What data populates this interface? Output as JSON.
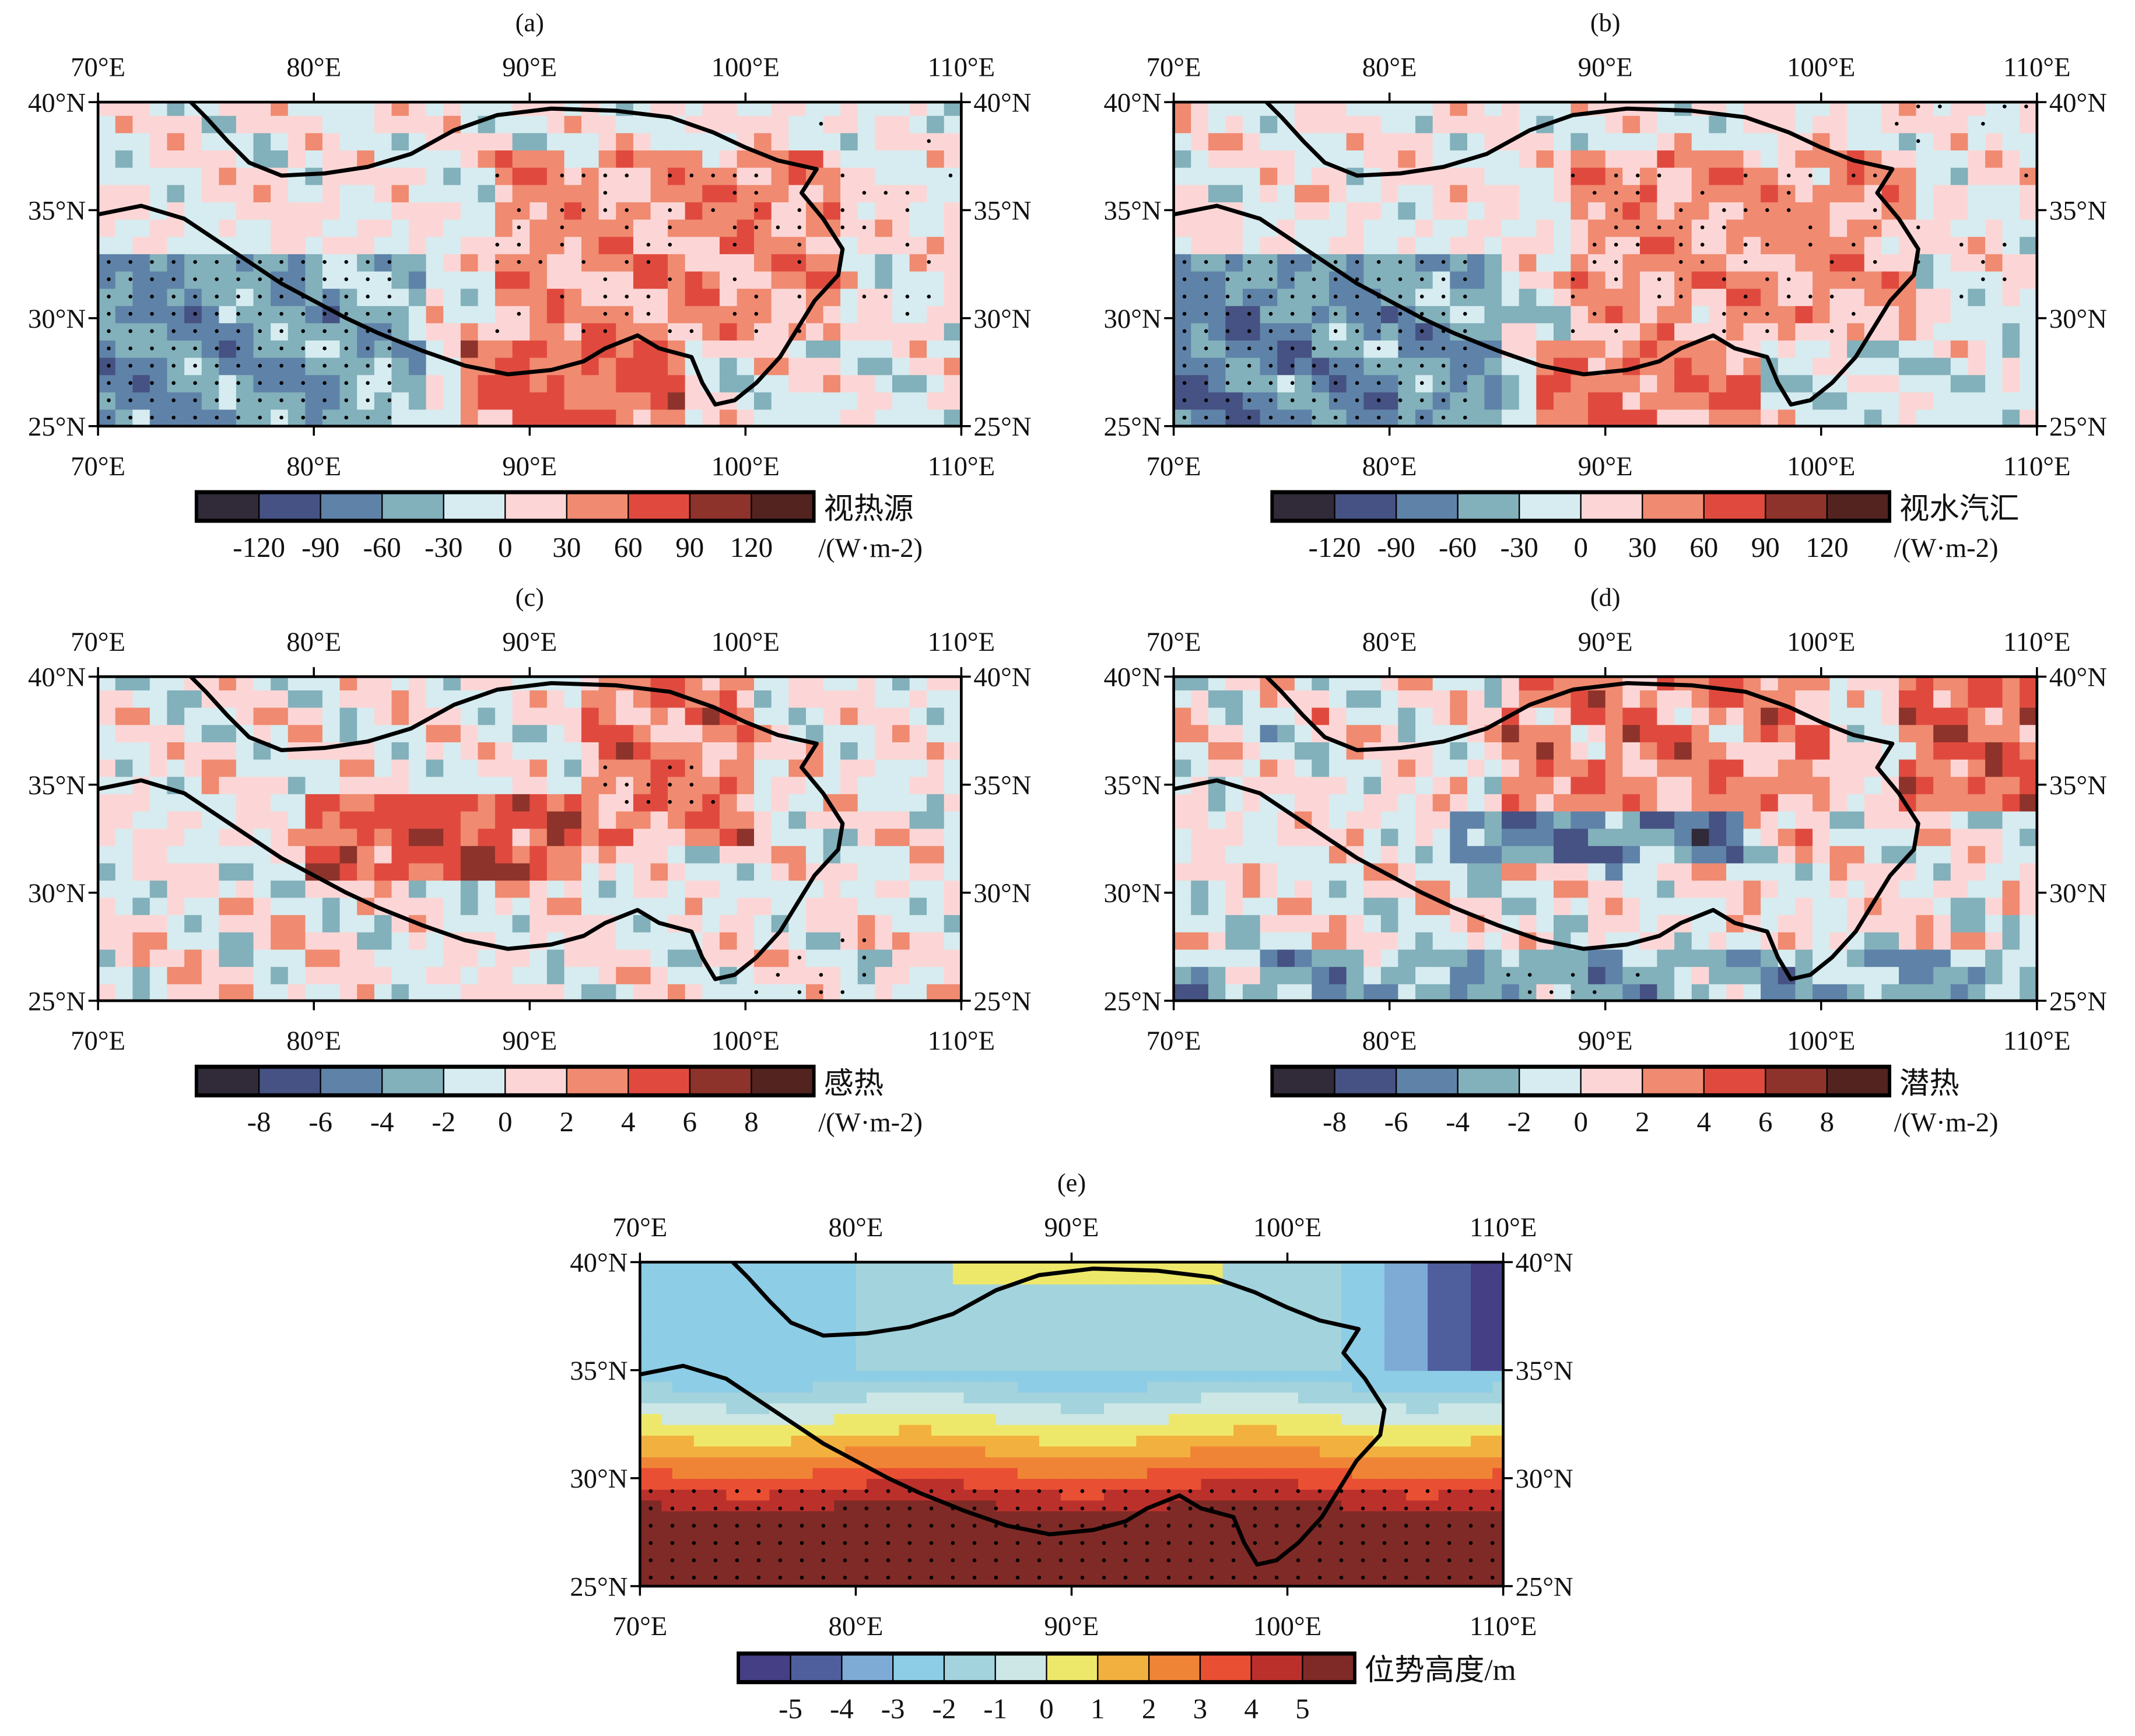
{
  "chart_data": [
    {
      "type": "heatmap",
      "panel": "(a)",
      "colorbar_title": "视热源",
      "units": "/(W·m-2)",
      "levels": [
        -120,
        -90,
        -60,
        -30,
        0,
        30,
        60,
        90,
        120
      ],
      "colors": [
        "#312a38",
        "#455283",
        "#5f82a8",
        "#82b0bb",
        "#d6ecf0",
        "#fcd6d6",
        "#f08a70",
        "#e04a3e",
        "#8e332b",
        "#52231f"
      ],
      "x_ticks": [
        "70°E",
        "80°E",
        "90°E",
        "100°E",
        "110°E"
      ],
      "y_ticks": [
        "25°N",
        "30°N",
        "35°N",
        "40°N"
      ],
      "xlim": [
        70,
        110
      ],
      "ylim": [
        25,
        40
      ],
      "stippling": true
    },
    {
      "type": "heatmap",
      "panel": "(b)",
      "colorbar_title": "视水汽汇",
      "units": "/(W·m-2)",
      "levels": [
        -120,
        -90,
        -60,
        -30,
        0,
        30,
        60,
        90,
        120
      ],
      "colors": [
        "#312a38",
        "#455283",
        "#5f82a8",
        "#82b0bb",
        "#d6ecf0",
        "#fcd6d6",
        "#f08a70",
        "#e04a3e",
        "#8e332b",
        "#52231f"
      ],
      "x_ticks": [
        "70°E",
        "80°E",
        "90°E",
        "100°E",
        "110°E"
      ],
      "y_ticks": [
        "25°N",
        "30°N",
        "35°N",
        "40°N"
      ],
      "xlim": [
        70,
        110
      ],
      "ylim": [
        25,
        40
      ],
      "stippling": true
    },
    {
      "type": "heatmap",
      "panel": "(c)",
      "colorbar_title": "感热",
      "units": "/(W·m-2)",
      "levels": [
        -8,
        -6,
        -4,
        -2,
        0,
        2,
        4,
        6,
        8
      ],
      "colors": [
        "#312a38",
        "#455283",
        "#5f82a8",
        "#82b0bb",
        "#d6ecf0",
        "#fcd6d6",
        "#f08a70",
        "#e04a3e",
        "#8e332b",
        "#52231f"
      ],
      "x_ticks": [
        "70°E",
        "80°E",
        "90°E",
        "100°E",
        "110°E"
      ],
      "y_ticks": [
        "25°N",
        "30°N",
        "35°N",
        "40°N"
      ],
      "xlim": [
        70,
        110
      ],
      "ylim": [
        25,
        40
      ],
      "stippling": true
    },
    {
      "type": "heatmap",
      "panel": "(d)",
      "colorbar_title": "潜热",
      "units": "/(W·m-2)",
      "levels": [
        -8,
        -6,
        -4,
        -2,
        0,
        2,
        4,
        6,
        8
      ],
      "colors": [
        "#312a38",
        "#455283",
        "#5f82a8",
        "#82b0bb",
        "#d6ecf0",
        "#fcd6d6",
        "#f08a70",
        "#e04a3e",
        "#8e332b",
        "#52231f"
      ],
      "x_ticks": [
        "70°E",
        "80°E",
        "90°E",
        "100°E",
        "110°E"
      ],
      "y_ticks": [
        "25°N",
        "30°N",
        "35°N",
        "40°N"
      ],
      "xlim": [
        70,
        110
      ],
      "ylim": [
        25,
        40
      ],
      "stippling": true
    },
    {
      "type": "heatmap",
      "panel": "(e)",
      "colorbar_title": "位势高度/m",
      "units": "",
      "levels": [
        -5,
        -4,
        -3,
        -2,
        -1,
        0,
        1,
        2,
        3,
        4,
        5
      ],
      "colors": [
        "#453f85",
        "#4f5f9e",
        "#7eabd6",
        "#8dcde6",
        "#a3d3dc",
        "#cde7e6",
        "#eee86a",
        "#f2b03e",
        "#f08436",
        "#e94f33",
        "#bc302c",
        "#7f2a26"
      ],
      "x_ticks": [
        "70°E",
        "80°E",
        "90°E",
        "100°E",
        "110°E"
      ],
      "y_ticks": [
        "25°N",
        "30°N",
        "35°N",
        "40°N"
      ],
      "xlim": [
        70,
        110
      ],
      "ylim": [
        25,
        40
      ],
      "stippling": true
    }
  ]
}
